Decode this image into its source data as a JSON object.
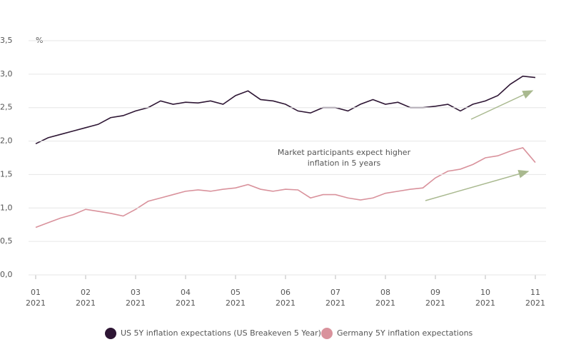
{
  "chart_data": {
    "type": "line",
    "y_unit": "%",
    "annotation": [
      "Market participants expect higher",
      "inflation in 5 years"
    ],
    "x": [
      1,
      1.25,
      1.5,
      1.75,
      2,
      2.25,
      2.5,
      2.75,
      3,
      3.25,
      3.5,
      3.75,
      4,
      4.25,
      4.5,
      4.75,
      5,
      5.25,
      5.5,
      5.75,
      6,
      6.25,
      6.5,
      6.75,
      7,
      7.25,
      7.5,
      7.75,
      8,
      8.25,
      8.5,
      8.75,
      9,
      9.25,
      9.5,
      9.75,
      10,
      10.25,
      10.5,
      10.75,
      11
    ],
    "series": [
      {
        "name": "US 5Y inflation expectations (US Breakeven 5 Year)",
        "color": "#2e1634",
        "values": [
          1.96,
          2.05,
          2.1,
          2.15,
          2.2,
          2.25,
          2.35,
          2.38,
          2.45,
          2.5,
          2.6,
          2.55,
          2.58,
          2.57,
          2.6,
          2.55,
          2.68,
          2.75,
          2.62,
          2.6,
          2.55,
          2.45,
          2.42,
          2.5,
          2.5,
          2.45,
          2.55,
          2.62,
          2.55,
          2.58,
          2.5,
          2.5,
          2.52,
          2.55,
          2.45,
          2.55,
          2.6,
          2.68,
          2.85,
          2.97,
          2.95
        ]
      },
      {
        "name": "Germany 5Y inflation expectations",
        "color": "#d9929c",
        "values": [
          0.71,
          0.78,
          0.85,
          0.9,
          0.98,
          0.95,
          0.92,
          0.88,
          0.98,
          1.1,
          1.15,
          1.2,
          1.25,
          1.27,
          1.25,
          1.28,
          1.3,
          1.35,
          1.28,
          1.25,
          1.28,
          1.27,
          1.15,
          1.2,
          1.2,
          1.15,
          1.12,
          1.15,
          1.22,
          1.25,
          1.28,
          1.3,
          1.45,
          1.55,
          1.58,
          1.65,
          1.75,
          1.78,
          1.85,
          1.9,
          1.68
        ]
      }
    ],
    "xlim": [
      1,
      11
    ],
    "xticks": [
      {
        "value": 1,
        "label": [
          "01",
          "2021"
        ]
      },
      {
        "value": 2,
        "label": [
          "02",
          "2021"
        ]
      },
      {
        "value": 3,
        "label": [
          "03",
          "2021"
        ]
      },
      {
        "value": 4,
        "label": [
          "04",
          "2021"
        ]
      },
      {
        "value": 5,
        "label": [
          "05",
          "2021"
        ]
      },
      {
        "value": 6,
        "label": [
          "06",
          "2021"
        ]
      },
      {
        "value": 7,
        "label": [
          "07",
          "2021"
        ]
      },
      {
        "value": 8,
        "label": [
          "08",
          "2021"
        ]
      },
      {
        "value": 9,
        "label": [
          "09",
          "2021"
        ]
      },
      {
        "value": 10,
        "label": [
          "10",
          "2021"
        ]
      },
      {
        "value": 11,
        "label": [
          "11",
          "2021"
        ]
      }
    ],
    "ylim": [
      0,
      3.5
    ],
    "yticks": [
      {
        "value": 0,
        "label": "0,0"
      },
      {
        "value": 0.5,
        "label": "0,5"
      },
      {
        "value": 1,
        "label": "1,0"
      },
      {
        "value": 1.5,
        "label": "1,5"
      },
      {
        "value": 2,
        "label": "2,0"
      },
      {
        "value": 2.5,
        "label": "2,5"
      },
      {
        "value": 3,
        "label": "3,0"
      },
      {
        "value": 3.5,
        "label": "3,5"
      }
    ],
    "grid": true
  }
}
